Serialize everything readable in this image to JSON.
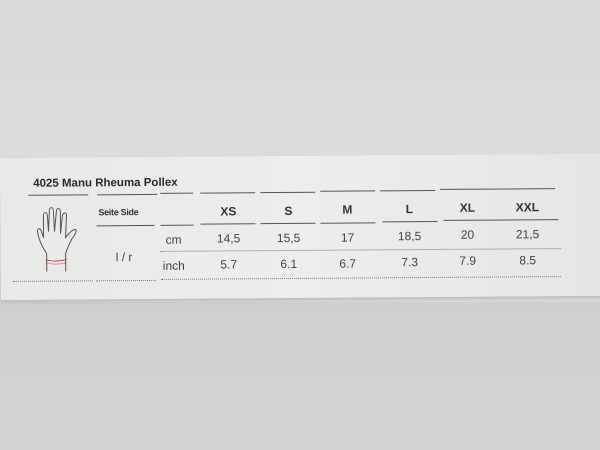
{
  "title": "4025 Manu Rheuma Pollex",
  "side_header": "Seite Side",
  "side_value": "l / r",
  "sizes": [
    "XS",
    "S",
    "M",
    "L",
    "XL",
    "XXL"
  ],
  "rows": [
    {
      "unit": "cm",
      "values": [
        "14,5",
        "15,5",
        "17",
        "18,5",
        "20",
        "21,5"
      ]
    },
    {
      "unit": "inch",
      "values": [
        "5.7",
        "6.1",
        "6.7",
        "7.3",
        "7.9",
        "8.5"
      ]
    }
  ],
  "icon": "hand-wrist-measure-icon",
  "colors": {
    "label": "#ececea",
    "text": "#3a3a3a",
    "measure_line": "#d04040"
  }
}
